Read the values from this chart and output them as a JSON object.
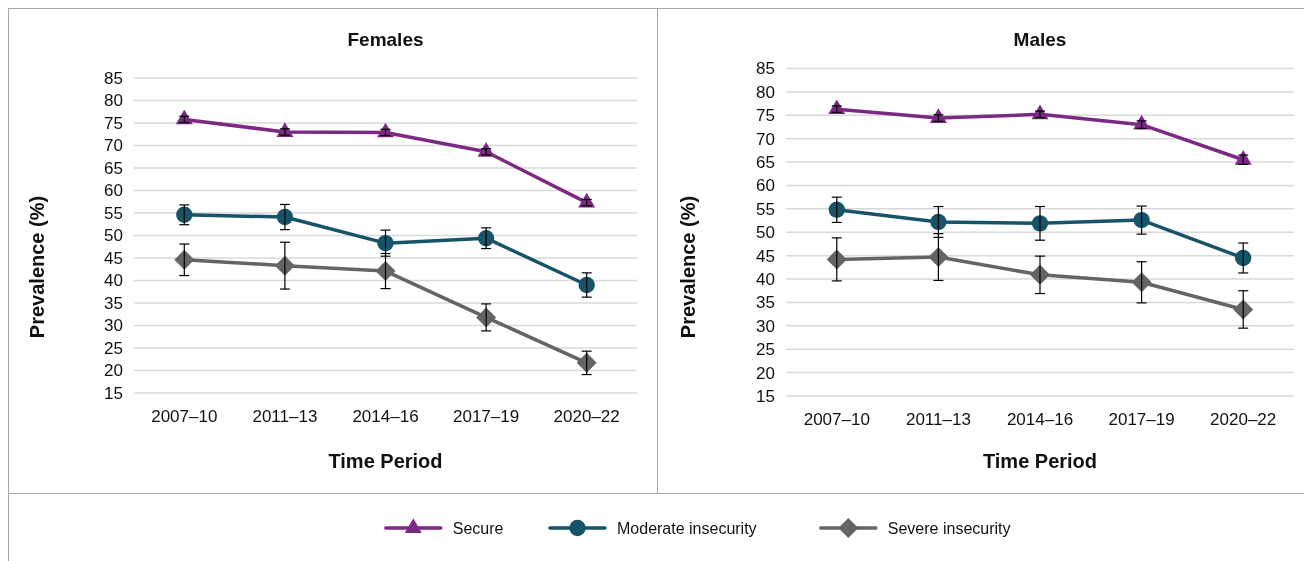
{
  "chart_data": [
    {
      "type": "line",
      "title": "Females",
      "xlabel": "Time Period",
      "ylabel": "Prevalence (%)",
      "categories": [
        "2007–10",
        "2011–13",
        "2014–16",
        "2017–19",
        "2020–22"
      ],
      "ylim": [
        15,
        85
      ],
      "yticks": [
        15,
        20,
        25,
        30,
        35,
        40,
        45,
        50,
        55,
        60,
        65,
        70,
        75,
        80,
        85
      ],
      "grid": "y",
      "legend": "bottom",
      "series": [
        {
          "name": "Secure",
          "color": "#7b2a84",
          "marker": "triangle",
          "values": [
            75.8,
            73.0,
            72.9,
            68.6,
            57.3
          ],
          "errors": [
            0.7,
            0.7,
            0.7,
            0.7,
            0.7
          ]
        },
        {
          "name": "Moderate insecurity",
          "color": "#17546a",
          "marker": "circle",
          "values": [
            54.6,
            54.1,
            48.3,
            49.4,
            39.0
          ],
          "errors": [
            2.2,
            2.8,
            2.9,
            2.3,
            2.7
          ]
        },
        {
          "name": "Severe insecurity",
          "color": "#646464",
          "marker": "diamond",
          "values": [
            44.6,
            43.3,
            42.1,
            31.8,
            21.7
          ],
          "errors": [
            3.5,
            5.2,
            3.9,
            3.0,
            2.6
          ]
        }
      ]
    },
    {
      "type": "line",
      "title": "Males",
      "xlabel": "Time Period",
      "ylabel": "Prevalence (%)",
      "categories": [
        "2007–10",
        "2011–13",
        "2014–16",
        "2017–19",
        "2020–22"
      ],
      "ylim": [
        15,
        85
      ],
      "yticks": [
        15,
        20,
        25,
        30,
        35,
        40,
        45,
        50,
        55,
        60,
        65,
        70,
        75,
        80,
        85
      ],
      "grid": "y",
      "legend": "bottom",
      "series": [
        {
          "name": "Secure",
          "color": "#7b2a84",
          "marker": "triangle",
          "values": [
            76.3,
            74.4,
            75.2,
            73.0,
            65.5
          ],
          "errors": [
            0.7,
            0.7,
            0.7,
            0.8,
            1.0
          ]
        },
        {
          "name": "Moderate insecurity",
          "color": "#17546a",
          "marker": "circle",
          "values": [
            54.8,
            52.2,
            51.9,
            52.6,
            44.5
          ],
          "errors": [
            2.7,
            3.3,
            3.6,
            3.0,
            3.2
          ]
        },
        {
          "name": "Severe insecurity",
          "color": "#646464",
          "marker": "diamond",
          "values": [
            44.2,
            44.7,
            40.9,
            39.3,
            33.5
          ],
          "errors": [
            4.6,
            5.0,
            4.0,
            4.4,
            4.0
          ]
        }
      ]
    }
  ]
}
